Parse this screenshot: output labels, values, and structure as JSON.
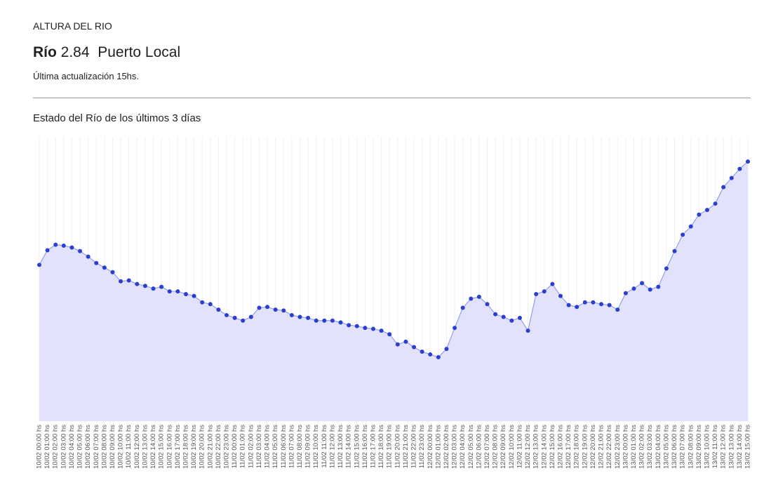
{
  "header": {
    "title": "ALTURA DEL RIO",
    "river_label": "Río",
    "level": "2.84",
    "location": "Puerto Local",
    "updated": "Última actualización 15hs."
  },
  "chart_data": {
    "type": "area",
    "title": "Estado del Río de los últimos 3 días",
    "categories": [
      "10/02 00:00 hs",
      "10/02 01:00 hs",
      "10/02 02:00 hs",
      "10/02 03:00 hs",
      "10/02 04:00 hs",
      "10/02 05:00 hs",
      "10/02 06:00 hs",
      "10/02 07:00 hs",
      "10/02 08:00 hs",
      "10/02 09:00 hs",
      "10/02 10:00 hs",
      "10/02 11:00 hs",
      "10/02 12:00 hs",
      "10/02 13:00 hs",
      "10/02 14:00 hs",
      "10/02 15:00 hs",
      "10/02 16:00 hs",
      "10/02 17:00 hs",
      "10/02 18:00 hs",
      "10/02 19:00 hs",
      "10/02 20:00 hs",
      "10/02 21:00 hs",
      "10/02 22:00 hs",
      "10/02 23:00 hs",
      "11/02 00:00 hs",
      "11/02 01:00 hs",
      "11/02 02:00 hs",
      "11/02 03:00 hs",
      "11/02 04:00 hs",
      "11/02 05:00 hs",
      "11/02 06:00 hs",
      "11/02 07:00 hs",
      "11/02 08:00 hs",
      "11/02 09:00 hs",
      "11/02 10:00 hs",
      "11/02 11:00 hs",
      "11/02 12:00 hs",
      "11/02 13:00 hs",
      "11/02 14:00 hs",
      "11/02 15:00 hs",
      "11/02 16:00 hs",
      "11/02 17:00 hs",
      "11/02 18:00 hs",
      "11/02 19:00 hs",
      "11/02 20:00 hs",
      "11/02 21:00 hs",
      "11/02 22:00 hs",
      "11/02 23:00 hs",
      "12/02 00:00 hs",
      "12/02 01:00 hs",
      "12/02 02:00 hs",
      "12/02 03:00 hs",
      "12/02 04:00 hs",
      "12/02 05:00 hs",
      "12/02 06:00 hs",
      "12/02 07:00 hs",
      "12/02 08:00 hs",
      "12/02 09:00 hs",
      "12/02 10:00 hs",
      "12/02 11:00 hs",
      "12/02 12:00 hs",
      "12/02 13:00 hs",
      "12/02 14:00 hs",
      "12/02 15:00 hs",
      "12/02 16:00 hs",
      "12/02 17:00 hs",
      "12/02 18:00 hs",
      "12/02 19:00 hs",
      "12/02 20:00 hs",
      "12/02 21:00 hs",
      "12/02 22:00 hs",
      "12/02 23:00 hs",
      "13/02 00:00 hs",
      "13/02 01:00 hs",
      "13/02 02:00 hs",
      "13/02 03:00 hs",
      "13/02 04:00 hs",
      "13/02 05:00 hs",
      "13/02 06:00 hs",
      "13/02 07:00 hs",
      "13/02 08:00 hs",
      "13/02 09:00 hs",
      "13/02 10:00 hs",
      "13/02 11:00 hs",
      "13/02 12:00 hs",
      "13/02 13:00 hs",
      "13/02 14:00 hs",
      "13/02 15:00 hs"
    ],
    "values": [
      1.71,
      1.87,
      1.93,
      1.92,
      1.9,
      1.86,
      1.8,
      1.73,
      1.68,
      1.63,
      1.53,
      1.54,
      1.5,
      1.48,
      1.45,
      1.47,
      1.42,
      1.42,
      1.39,
      1.37,
      1.3,
      1.28,
      1.22,
      1.16,
      1.13,
      1.1,
      1.14,
      1.24,
      1.25,
      1.22,
      1.21,
      1.16,
      1.14,
      1.13,
      1.1,
      1.1,
      1.1,
      1.08,
      1.05,
      1.04,
      1.02,
      1.01,
      0.99,
      0.95,
      0.84,
      0.87,
      0.81,
      0.76,
      0.73,
      0.7,
      0.79,
      1.02,
      1.24,
      1.34,
      1.36,
      1.28,
      1.17,
      1.14,
      1.1,
      1.13,
      0.99,
      1.39,
      1.42,
      1.5,
      1.37,
      1.27,
      1.25,
      1.3,
      1.3,
      1.28,
      1.27,
      1.22,
      1.4,
      1.45,
      1.51,
      1.44,
      1.47,
      1.67,
      1.86,
      2.04,
      2.13,
      2.26,
      2.31,
      2.38,
      2.56,
      2.66,
      2.76,
      2.84
    ],
    "ylim": [
      0,
      3.11
    ],
    "color": "#2a3fd0",
    "line_color": "#8fa0e8",
    "fill": "#e2e2fd",
    "grid": true
  }
}
